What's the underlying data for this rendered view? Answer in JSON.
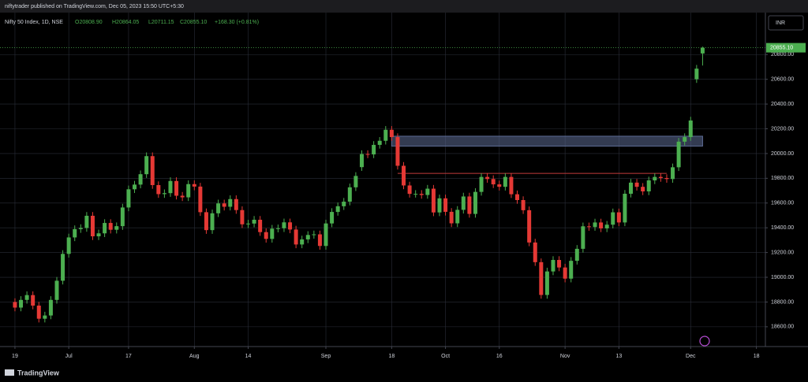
{
  "header": {
    "published": "niftytrader published on TradingView.com, Dec 05, 2023 15:50 UTC+5:30",
    "footer": "TradingView"
  },
  "chart_data": {
    "type": "candlestick",
    "legend": {
      "symbol": "Nifty 50 Index, 1D, NSE",
      "open": "O20808.90",
      "high": "H20864.05",
      "low": "L20711.15",
      "close": "C20855.10",
      "change": "+168.30 (+0.81%)"
    },
    "currency": "INR",
    "last_price": {
      "value": 20855.1,
      "label": "20855.10"
    },
    "up_color": "#4caf50",
    "down_color": "#e53935",
    "grid": true,
    "xlim": [
      -2.5,
      125.5
    ],
    "ylim": [
      18440,
      21139
    ],
    "xticks": [
      {
        "value": 0,
        "label": "19"
      },
      {
        "value": 9,
        "label": "Jul"
      },
      {
        "value": 19,
        "label": "17"
      },
      {
        "value": 30,
        "label": "Aug"
      },
      {
        "value": 39,
        "label": "14"
      },
      {
        "value": 52,
        "label": "Sep"
      },
      {
        "value": 63,
        "label": "18"
      },
      {
        "value": 72,
        "label": "Oct"
      },
      {
        "value": 81,
        "label": "16"
      },
      {
        "value": 92,
        "label": "Nov"
      },
      {
        "value": 101,
        "label": "13"
      },
      {
        "value": 113,
        "label": "Dec"
      },
      {
        "value": 124,
        "label": "18"
      }
    ],
    "yticks": [
      {
        "value": 18600,
        "label": "18600.00"
      },
      {
        "value": 18800,
        "label": "18800.00"
      },
      {
        "value": 19000,
        "label": "19000.00"
      },
      {
        "value": 19200,
        "label": "19200.00"
      },
      {
        "value": 19400,
        "label": "19400.00"
      },
      {
        "value": 19600,
        "label": "19600.00"
      },
      {
        "value": 19800,
        "label": "19800.00"
      },
      {
        "value": 20000,
        "label": "20000.00"
      },
      {
        "value": 20200,
        "label": "20200.00"
      },
      {
        "value": 20400,
        "label": "20400.00"
      },
      {
        "value": 20600,
        "label": "20600.00"
      },
      {
        "value": 20800,
        "label": "20800.00"
      }
    ],
    "open": [
      18800,
      18755,
      18817,
      18856,
      18771,
      18665,
      18691,
      18817,
      18972,
      19189,
      19322,
      19389,
      19398,
      19497,
      19331,
      19355,
      19439,
      19384,
      19413,
      19564,
      19711,
      19749,
      19833,
      19979,
      19745,
      19672,
      19680,
      19778,
      19659,
      19646,
      19753,
      19733,
      19526,
      19381,
      19517,
      19597,
      19570,
      19632,
      19543,
      19428,
      19434,
      19465,
      19365,
      19310,
      19393,
      19396,
      19444,
      19386,
      19265,
      19306,
      19342,
      19347,
      19253,
      19435,
      19528,
      19574,
      19611,
      19727,
      19890,
      19996,
      19993,
      20070,
      20103,
      20192,
      20133,
      19901,
      19742,
      19674,
      19674,
      19665,
      19716,
      19524,
      19638,
      19529,
      19436,
      19545,
      19653,
      19512,
      19690,
      19811,
      19794,
      19751,
      19731,
      19811,
      19671,
      19624,
      19542,
      19281,
      19122,
      18857,
      19047,
      19140,
      19079,
      18989,
      19133,
      19230,
      19412,
      19406,
      19443,
      19395,
      19425,
      19525,
      19443,
      19675,
      19765,
      19731,
      19694,
      19783,
      19811,
      19802,
      19794,
      19889,
      20096,
      20133,
      20601,
      20808.9
    ],
    "high": [
      18830,
      18847,
      18886,
      18886,
      18801,
      18721,
      18847,
      19002,
      19219,
      19352,
      19419,
      19428,
      19527,
      19527,
      19385,
      19469,
      19469,
      19443,
      19594,
      19741,
      19779,
      19863,
      20009,
      20009,
      19775,
      19710,
      19808,
      19808,
      19689,
      19783,
      19783,
      19763,
      19556,
      19547,
      19627,
      19627,
      19662,
      19662,
      19573,
      19464,
      19495,
      19495,
      19395,
      19423,
      19426,
      19474,
      19474,
      19416,
      19336,
      19372,
      19377,
      19377,
      19465,
      19558,
      19604,
      19641,
      19757,
      19849,
      20026,
      20026,
      20100,
      20133,
      20222,
      20222,
      20163,
      19931,
      19772,
      19704,
      19704,
      19746,
      19746,
      19668,
      19668,
      19559,
      19575,
      19683,
      19683,
      19720,
      19841,
      19841,
      19824,
      19781,
      19841,
      19841,
      19701,
      19654,
      19572,
      19311,
      19152,
      19077,
      19170,
      19170,
      19109,
      19163,
      19260,
      19442,
      19442,
      19473,
      19473,
      19455,
      19555,
      19555,
      19705,
      19795,
      19795,
      19761,
      19813,
      19841,
      19841,
      19832,
      19919,
      20126,
      20163,
      20297,
      20716,
      20864.05
    ],
    "low": [
      18725,
      18725,
      18787,
      18741,
      18635,
      18635,
      18661,
      18787,
      18942,
      19159,
      19292,
      19359,
      19368,
      19301,
      19301,
      19325,
      19354,
      19354,
      19383,
      19534,
      19681,
      19719,
      19803,
      19715,
      19642,
      19642,
      19650,
      19629,
      19616,
      19616,
      19703,
      19496,
      19351,
      19351,
      19487,
      19540,
      19540,
      19513,
      19398,
      19398,
      19404,
      19335,
      19280,
      19280,
      19363,
      19366,
      19356,
      19235,
      19235,
      19276,
      19312,
      19223,
      19223,
      19405,
      19498,
      19544,
      19581,
      19697,
      19860,
      19963,
      19963,
      20040,
      20073,
      20103,
      19871,
      19712,
      19644,
      19644,
      19635,
      19635,
      19494,
      19494,
      19499,
      19406,
      19406,
      19515,
      19482,
      19482,
      19660,
      19764,
      19721,
      19701,
      19701,
      19641,
      19594,
      19512,
      19251,
      19092,
      18827,
      18827,
      19017,
      19049,
      18959,
      18959,
      19103,
      19200,
      19376,
      19376,
      19365,
      19365,
      19395,
      19413,
      19413,
      19645,
      19701,
      19664,
      19664,
      19753,
      19772,
      19764,
      19764,
      19859,
      20066,
      20103,
      20571,
      20711.15
    ],
    "close": [
      18755,
      18817,
      18856,
      18771,
      18665,
      18691,
      18817,
      18972,
      19189,
      19322,
      19389,
      19398,
      19497,
      19331,
      19355,
      19439,
      19384,
      19413,
      19564,
      19711,
      19749,
      19833,
      19979,
      19745,
      19672,
      19680,
      19778,
      19659,
      19646,
      19753,
      19733,
      19526,
      19381,
      19517,
      19597,
      19570,
      19632,
      19543,
      19428,
      19434,
      19465,
      19365,
      19310,
      19393,
      19396,
      19444,
      19386,
      19265,
      19306,
      19342,
      19347,
      19253,
      19435,
      19528,
      19574,
      19611,
      19727,
      19819,
      19996,
      19993,
      20070,
      20103,
      20192,
      20133,
      19901,
      19742,
      19674,
      19674,
      19665,
      19716,
      19524,
      19638,
      19529,
      19436,
      19545,
      19653,
      19512,
      19690,
      19811,
      19794,
      19751,
      19731,
      19811,
      19671,
      19624,
      19542,
      19281,
      19122,
      18857,
      19047,
      19140,
      19079,
      18989,
      19133,
      19230,
      19412,
      19406,
      19443,
      19395,
      19425,
      19525,
      19443,
      19675,
      19765,
      19731,
      19694,
      19783,
      19811,
      19802,
      19794,
      19889,
      20096,
      20133,
      20267,
      20686,
      20855.1
    ],
    "drawings": [
      {
        "type": "rect",
        "x": [
          63,
          115
        ],
        "y": [
          20060,
          20140
        ],
        "color": "#5c6b94"
      },
      {
        "type": "line",
        "x": [
          64,
          109
        ],
        "y": 19840,
        "color": "#c23b3b"
      }
    ]
  }
}
